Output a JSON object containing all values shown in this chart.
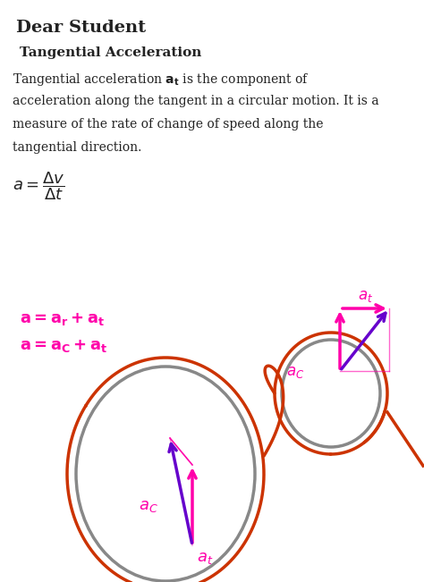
{
  "title": "Dear Student",
  "subtitle": "Tangential Acceleration",
  "body_text": [
    "Tangential acceleration $\\mathbf{a_t}$ is the component of",
    "acceleration along the tangent in a circular motion. It is a",
    "measure of the rate of change of speed along the",
    "tangential direction."
  ],
  "formula": "$a = \\dfrac{\\Delta v}{\\Delta t}$",
  "eq_line1": "$\\mathbf{a = a_r + a_t}$",
  "eq_line2": "$\\mathbf{a = a_C + a_t}$",
  "magenta_color": "#FF00AA",
  "purple_color": "#6600CC",
  "orange_color": "#CC3300",
  "gray_color": "#888888",
  "bg_color": "#FFFFFF",
  "text_color": "#222222"
}
